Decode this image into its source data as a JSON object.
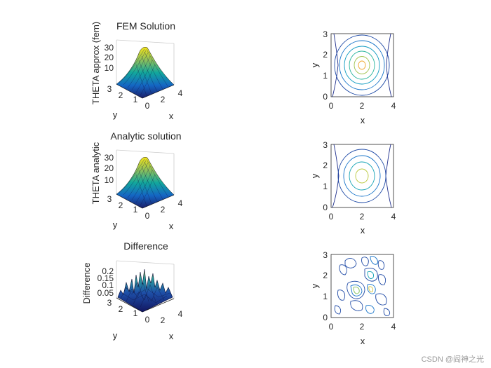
{
  "chart_data": [
    {
      "type": "surface",
      "title": "FEM Solution",
      "xlabel": "x",
      "ylabel": "y",
      "zlabel": "THETA approx (fem)",
      "xlim": [
        0,
        4
      ],
      "ylim": [
        0,
        3
      ],
      "x_ticks": [
        "0",
        "2",
        "4"
      ],
      "y_ticks": [
        "3",
        "2",
        "1",
        "0"
      ],
      "z_ticks": [
        "30",
        "20",
        "10"
      ],
      "peak": 30,
      "peak_at": [
        2,
        1.5
      ],
      "colormap": [
        "#352a87",
        "#0363e1",
        "#1485d4",
        "#06a7c6",
        "#38b99e",
        "#92bf73",
        "#d9ba56",
        "#fcce2e",
        "#f9fb0e"
      ]
    },
    {
      "type": "contour",
      "xlabel": "x",
      "ylabel": "y",
      "xlim": [
        0,
        4
      ],
      "ylim": [
        0,
        3
      ],
      "x_ticks": [
        "0",
        "2",
        "4"
      ],
      "y_ticks": [
        "0",
        "1",
        "2",
        "3"
      ],
      "center": [
        2,
        1.5
      ],
      "levels": 8
    },
    {
      "type": "surface",
      "title": "Analytic solution",
      "xlabel": "x",
      "ylabel": "y",
      "zlabel": "THETA analytic",
      "xlim": [
        0,
        4
      ],
      "ylim": [
        0,
        3
      ],
      "x_ticks": [
        "0",
        "2",
        "4"
      ],
      "y_ticks": [
        "3",
        "2",
        "1",
        "0"
      ],
      "z_ticks": [
        "30",
        "20",
        "10"
      ],
      "peak": 30,
      "peak_at": [
        2,
        1.5
      ]
    },
    {
      "type": "contour",
      "xlabel": "x",
      "ylabel": "y",
      "xlim": [
        0,
        4
      ],
      "ylim": [
        0,
        3
      ],
      "x_ticks": [
        "0",
        "2",
        "4"
      ],
      "y_ticks": [
        "0",
        "1",
        "2",
        "3"
      ],
      "center": [
        2,
        1.5
      ],
      "levels": 6
    },
    {
      "type": "surface",
      "title": "Difference",
      "xlabel": "x",
      "ylabel": "y",
      "zlabel": "Difference",
      "xlim": [
        0,
        4
      ],
      "ylim": [
        0,
        3
      ],
      "x_ticks": [
        "0",
        "2",
        "4"
      ],
      "y_ticks": [
        "3",
        "2",
        "1",
        "0"
      ],
      "z_ticks": [
        "0.2",
        "0.15",
        "0.1",
        "0.05"
      ],
      "zlim": [
        0,
        0.22
      ]
    },
    {
      "type": "contour",
      "xlabel": "x",
      "ylabel": "y",
      "xlim": [
        0,
        4
      ],
      "ylim": [
        0,
        3
      ],
      "x_ticks": [
        "0",
        "2",
        "4"
      ],
      "y_ticks": [
        "0",
        "1",
        "2",
        "3"
      ],
      "irregular": true
    }
  ],
  "watermark": "CSDN @阎神之光"
}
